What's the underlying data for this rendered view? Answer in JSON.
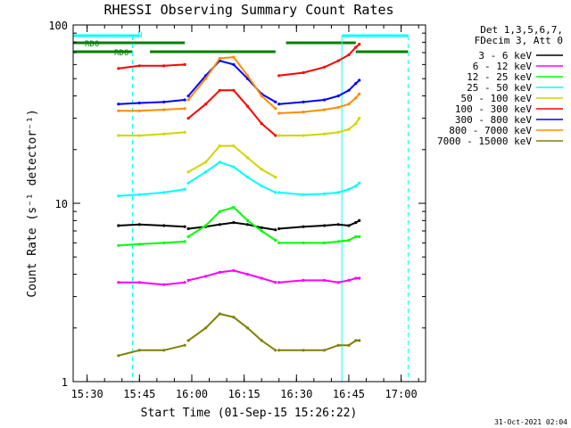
{
  "chart_data": {
    "type": "line",
    "title": "RHESSI Observing Summary Count Rates",
    "xlabel": "Start Time (01-Sep-15 15:26:22)",
    "ylabel": "Count Rate (s⁻¹ detector⁻¹)",
    "ylog": true,
    "ylim": [
      1,
      100
    ],
    "xlim": [
      "15:26",
      "17:07"
    ],
    "x_ticks": [
      "15:30",
      "15:45",
      "16:00",
      "16:15",
      "16:30",
      "16:45",
      "17:00"
    ],
    "y_ticks": [
      "1",
      "10",
      "100"
    ],
    "legend_header": [
      "Det 1,3,5,6,7,",
      "FDecim 3, Att 0"
    ],
    "legend_position": "right",
    "timestamp": "31-Oct-2021 02:04",
    "flags": [
      {
        "label": "N",
        "color": "#00ffff",
        "intervals": [
          [
            "15:26",
            "15:45"
          ],
          [
            "16:43",
            "17:02"
          ]
        ]
      },
      {
        "label": "RD0",
        "color": "#008000",
        "intervals": [
          [
            "15:26",
            "15:58"
          ],
          [
            "16:27",
            "16:47"
          ]
        ]
      },
      {
        "label": "RD6",
        "color": "#008000",
        "intervals": [
          [
            "15:26",
            "15:43"
          ],
          [
            "15:48",
            "16:24"
          ],
          [
            "16:47",
            "17:02"
          ]
        ]
      }
    ],
    "shading_lines": [
      {
        "time": "15:26",
        "color": "#00ffff",
        "style": "solid"
      },
      {
        "time": "15:43",
        "color": "#00ffff",
        "style": "dashed"
      },
      {
        "time": "16:43",
        "color": "#00ffff",
        "style": "solid"
      },
      {
        "time": "17:02",
        "color": "#00ffff",
        "style": "dashed"
      }
    ],
    "data_gaps": [
      [
        "15:26",
        "15:39"
      ],
      [
        "15:58",
        "15:59"
      ],
      [
        "16:24",
        "16:25"
      ],
      [
        "16:48",
        "17:07"
      ]
    ],
    "x": [
      "15:39",
      "15:45",
      "15:52",
      "15:58",
      "15:59",
      "16:04",
      "16:08",
      "16:12",
      "16:16",
      "16:20",
      "16:24",
      "16:25",
      "16:32",
      "16:38",
      "16:42",
      "16:45",
      "16:47",
      "16:48"
    ],
    "series": [
      {
        "name": "3 - 6 keV",
        "color": "#000000",
        "values": [
          7.5,
          7.6,
          7.5,
          7.4,
          7.2,
          7.4,
          7.6,
          7.8,
          7.6,
          7.3,
          7.1,
          7.2,
          7.4,
          7.5,
          7.6,
          7.5,
          7.8,
          8.0
        ]
      },
      {
        "name": "6 - 12 keV",
        "color": "#ff00ff",
        "values": [
          3.6,
          3.6,
          3.5,
          3.6,
          3.7,
          3.9,
          4.1,
          4.2,
          4.0,
          3.8,
          3.6,
          3.6,
          3.7,
          3.7,
          3.6,
          3.7,
          3.8,
          3.8
        ]
      },
      {
        "name": "12 - 25 keV",
        "color": "#00ff00",
        "values": [
          5.8,
          5.9,
          6.0,
          6.1,
          6.5,
          7.5,
          9.0,
          9.5,
          8.0,
          7.0,
          6.2,
          6.0,
          6.0,
          6.0,
          6.1,
          6.2,
          6.5,
          6.5
        ]
      },
      {
        "name": "25 - 50 keV",
        "color": "#00ffff",
        "values": [
          11.0,
          11.2,
          11.5,
          12.0,
          13.0,
          15.0,
          17.0,
          16.0,
          14.0,
          12.5,
          11.5,
          11.5,
          11.2,
          11.3,
          11.5,
          12.0,
          12.5,
          13.0
        ]
      },
      {
        "name": "50 - 100 keV",
        "color": "#d4d400",
        "values": [
          24.0,
          24.0,
          24.5,
          25.0,
          15.0,
          17.0,
          21.0,
          21.0,
          18.0,
          15.5,
          14.0,
          24.0,
          24.0,
          24.5,
          25.0,
          26.0,
          28.0,
          30.0
        ]
      },
      {
        "name": "100 - 300 keV",
        "color": "#ff0000",
        "values": [
          57.0,
          59.0,
          59.0,
          60.0,
          30.0,
          36.0,
          43.0,
          43.0,
          35.0,
          28.0,
          24.0,
          52.0,
          54.0,
          58.0,
          63.0,
          68.0,
          75.0,
          78.0
        ]
      },
      {
        "name": "300 - 800 keV",
        "color": "#0000ff",
        "values": [
          36.0,
          36.5,
          37.0,
          38.0,
          40.0,
          52.0,
          63.0,
          60.0,
          50.0,
          41.0,
          37.0,
          36.0,
          37.0,
          38.0,
          40.0,
          43.0,
          47.0,
          49.0
        ]
      },
      {
        "name": "800 - 7000 keV",
        "color": "#ff8c00",
        "values": [
          33.0,
          33.0,
          33.5,
          34.0,
          38.0,
          50.0,
          65.0,
          66.0,
          52.0,
          40.0,
          34.0,
          32.0,
          32.5,
          33.5,
          34.5,
          36.0,
          39.0,
          41.0
        ]
      },
      {
        "name": "7000 - 15000 keV",
        "color": "#808000",
        "values": [
          1.4,
          1.5,
          1.5,
          1.6,
          1.7,
          2.0,
          2.4,
          2.3,
          2.0,
          1.7,
          1.5,
          1.5,
          1.5,
          1.5,
          1.6,
          1.6,
          1.7,
          1.7
        ]
      }
    ]
  }
}
